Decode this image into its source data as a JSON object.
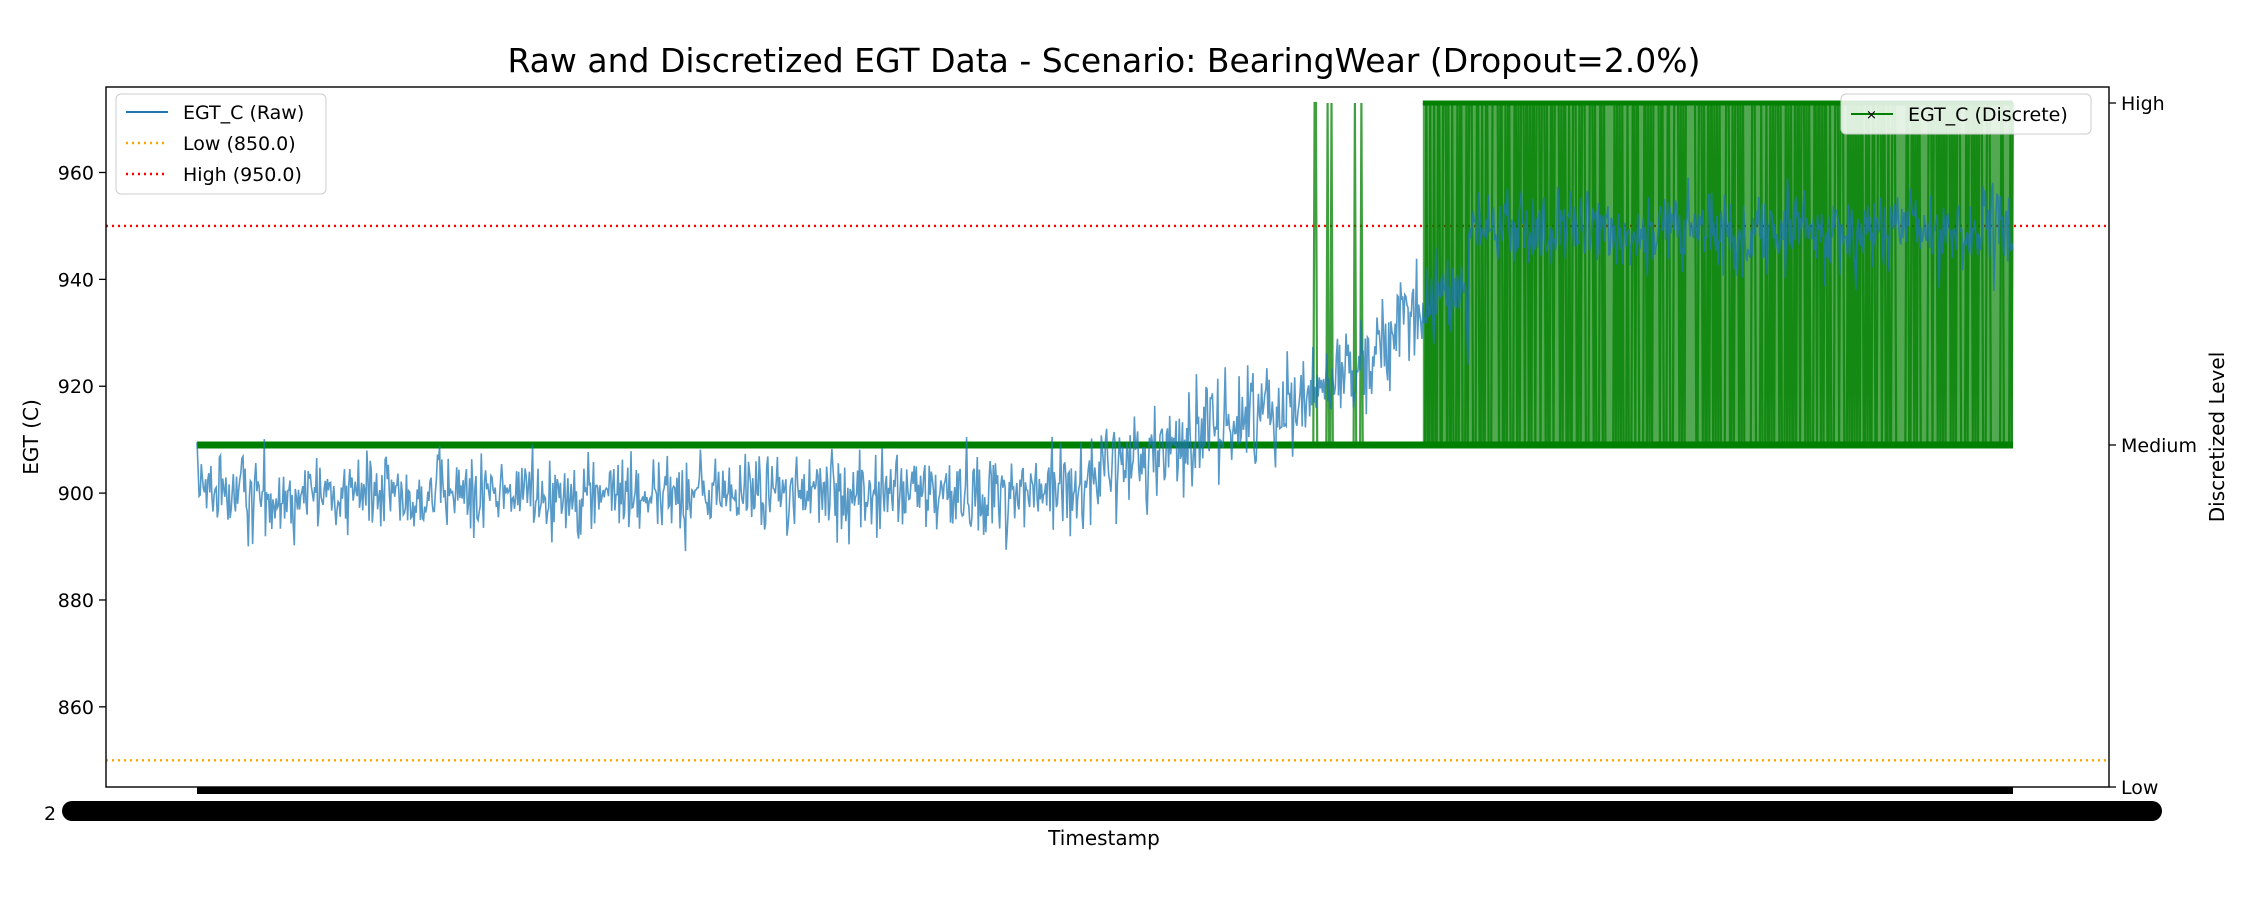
{
  "chart_data": {
    "type": "line",
    "title": "Raw and Discretized EGT Data - Scenario: BearingWear (Dropout=2.0%)",
    "xlabel": "Timestamp",
    "ylabel": "EGT (C)",
    "y2label": "Discretized Level",
    "ylim": [
      845,
      976
    ],
    "yticks": [
      860,
      880,
      900,
      920,
      940,
      960
    ],
    "y2ticks": [
      "Low",
      "Medium",
      "High"
    ],
    "x_tick_labels_overlapping": "2",
    "grid": false,
    "legend_left": "top-left",
    "legend_right": "top-right",
    "thresholds": [
      {
        "name": "Low (850.0)",
        "value": 850.0,
        "color": "#ffa500",
        "style": "dotted"
      },
      {
        "name": "High (950.0)",
        "value": 950.0,
        "color": "#ff0000",
        "style": "dotted"
      }
    ],
    "series": [
      {
        "name": "EGT_C (Raw)",
        "axis": "left",
        "color": "#1f77b4",
        "segments": [
          {
            "from_fraction": 0.0,
            "to_fraction": 0.47,
            "mean": 900,
            "noise_sd": 5
          },
          {
            "from_fraction": 0.47,
            "to_fraction": 0.62,
            "mean_start": 900,
            "mean_end": 920,
            "noise_sd": 6
          },
          {
            "from_fraction": 0.62,
            "to_fraction": 0.7,
            "mean_start": 920,
            "mean_end": 940,
            "noise_sd": 6
          },
          {
            "from_fraction": 0.7,
            "to_fraction": 1.0,
            "mean": 949,
            "noise_sd": 5
          }
        ]
      },
      {
        "name": "EGT_C (Discrete)",
        "axis": "right",
        "color": "#008000",
        "levels_by_segment": [
          {
            "from_fraction": 0.0,
            "to_fraction": 0.615,
            "level": "Medium"
          },
          {
            "from_fraction": 0.615,
            "to_fraction": 0.675,
            "level": "Medium/High sparse"
          },
          {
            "from_fraction": 0.675,
            "to_fraction": 1.0,
            "level": "Medium/High alternating"
          }
        ]
      }
    ]
  }
}
